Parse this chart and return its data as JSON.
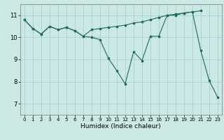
{
  "title": "",
  "xlabel": "Humidex (Indice chaleur)",
  "bg_color": "#cce8e4",
  "line_color": "#1e6b5e",
  "grid_color": "#99cccc",
  "xlim": [
    -0.5,
    23.5
  ],
  "ylim": [
    6.5,
    11.5
  ],
  "xticks": [
    0,
    1,
    2,
    3,
    4,
    5,
    6,
    7,
    8,
    9,
    10,
    11,
    12,
    13,
    14,
    15,
    16,
    17,
    18,
    19,
    20,
    21,
    22,
    23
  ],
  "yticks": [
    7,
    8,
    9,
    10,
    11
  ],
  "series1": [
    10.8,
    10.4,
    10.15,
    10.5,
    10.35,
    10.45,
    10.3,
    10.05,
    10.0,
    9.9,
    9.05,
    8.5,
    7.9,
    9.35,
    8.95,
    10.05,
    10.05,
    11.0,
    11.0,
    11.1,
    11.15,
    9.4,
    8.05,
    7.3
  ],
  "series2_x": [
    0,
    1,
    2,
    3,
    4,
    5,
    6,
    7,
    8,
    9,
    10,
    11,
    12,
    13,
    14,
    15,
    16,
    17,
    18,
    19,
    20,
    21
  ],
  "series2_y": [
    10.8,
    10.4,
    10.15,
    10.5,
    10.35,
    10.45,
    10.3,
    10.05,
    10.35,
    10.4,
    10.45,
    10.5,
    10.55,
    10.65,
    10.7,
    10.8,
    10.9,
    11.0,
    11.05,
    11.1,
    11.15,
    11.2
  ]
}
